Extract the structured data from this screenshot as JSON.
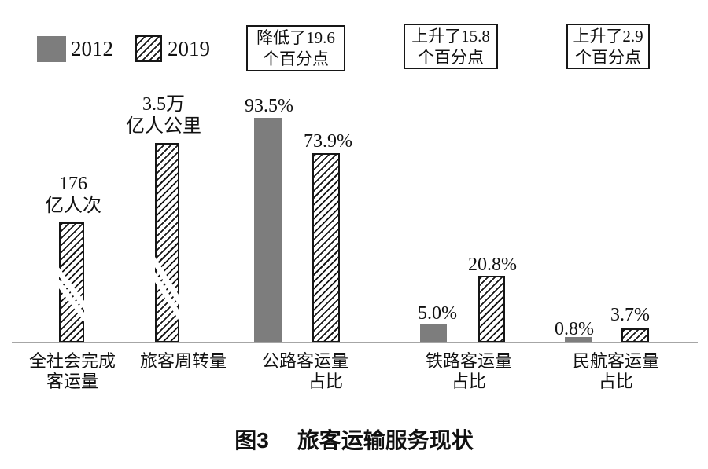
{
  "figure": {
    "caption_prefix": "图3",
    "caption_text": "旅客运输服务现状"
  },
  "legend": {
    "items": [
      {
        "label": "2012",
        "swatch": "solid-gray-square"
      },
      {
        "label": "2019",
        "swatch": "diagonal-hatch-square"
      }
    ]
  },
  "annotation_boxes": [
    {
      "line1": "降低了19.6",
      "line2": "个百分点"
    },
    {
      "line1": "上升了15.8",
      "line2": "个百分点"
    },
    {
      "line1": "上升了2.9",
      "line2": "个百分点"
    }
  ],
  "value_labels": [
    {
      "line1": "176",
      "line2": "亿人次"
    },
    {
      "line1": "3.5万",
      "line2": "亿人公里"
    },
    {
      "line1": "93.5%"
    },
    {
      "line1": "73.9%"
    },
    {
      "line1": "5.0%"
    },
    {
      "line1": "20.8%"
    },
    {
      "line1": "0.8%"
    },
    {
      "line1": "3.7%"
    }
  ],
  "x_axis_labels": [
    {
      "line1": "全社会完成",
      "line2": "客运量"
    },
    {
      "line1": "旅客周转量"
    },
    {
      "line1": "公路客运量",
      "line2": "占比"
    },
    {
      "line1": "铁路客运量",
      "line2": "占比"
    },
    {
      "line1": "民航客运量",
      "line2": "占比"
    }
  ],
  "colors": {
    "bar_2012": "#7d7d7d",
    "hatch_line": "#161616",
    "axis_line": "#a6a6a6",
    "text": "#111111",
    "background": "#ffffff"
  },
  "chart_data": {
    "type": "bar",
    "title": "图3 旅客运输服务现状",
    "categories": [
      "全社会完成客运量",
      "旅客周转量",
      "公路客运量占比",
      "铁路客运量占比",
      "民航客运量占比"
    ],
    "series": [
      {
        "name": "2012",
        "values": [
          null,
          null,
          93.5,
          5.0,
          0.8
        ]
      },
      {
        "name": "2019",
        "values": [
          176,
          3.5,
          73.9,
          20.8,
          3.7
        ]
      }
    ],
    "value_units": [
      "亿人次",
      "万亿人公里",
      "%",
      "%",
      "%"
    ],
    "axis_break_on": [
      "全社会完成客运量",
      "旅客周转量"
    ],
    "annotations": [
      {
        "category": "公路客运量占比",
        "text": "降低了19.6个百分点"
      },
      {
        "category": "铁路客运量占比",
        "text": "上升了15.8个百分点"
      },
      {
        "category": "民航客运量占比",
        "text": "上升了2.9个百分点"
      }
    ],
    "legend_position": "top-left",
    "grid": false,
    "xlabel": "",
    "ylabel": ""
  }
}
